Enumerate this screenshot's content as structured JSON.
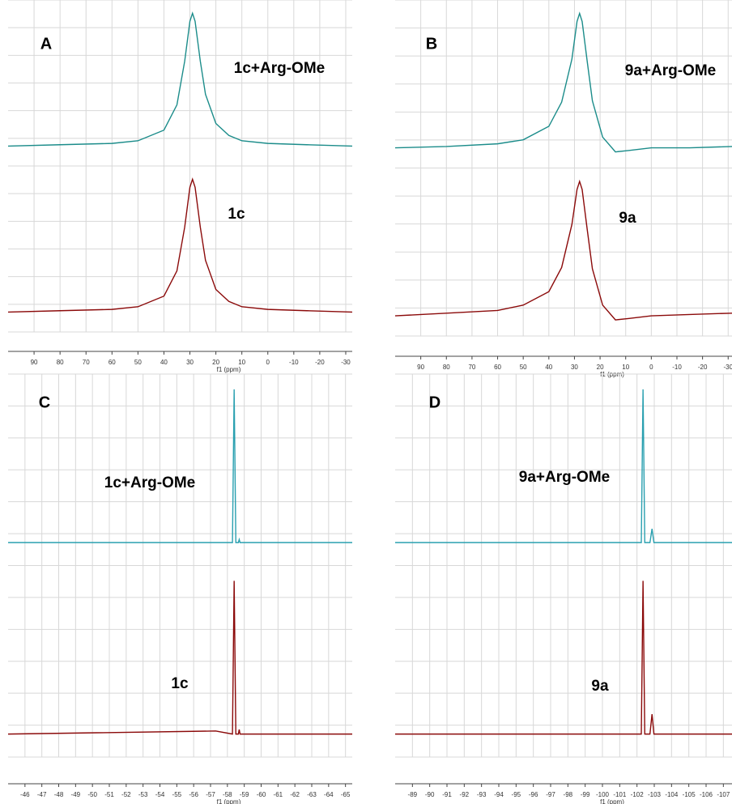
{
  "chart_data": [
    {
      "type": "line",
      "panel": "A",
      "xlabel": "f1 (ppm)",
      "xlim": [
        100,
        -32.5
      ],
      "ylim": [
        0,
        1
      ],
      "xticks": [
        90,
        80,
        70,
        60,
        50,
        40,
        30,
        20,
        10,
        0,
        -10,
        -20,
        -30
      ],
      "x": [
        100,
        80,
        60,
        50,
        40,
        35,
        32,
        30,
        29,
        28,
        26,
        24,
        20,
        15,
        10,
        0,
        -15,
        -32.5
      ],
      "series": [
        {
          "name": "1c+Arg-OMe",
          "color": "#1b8c8a",
          "values": [
            0,
            0.01,
            0.02,
            0.04,
            0.12,
            0.31,
            0.64,
            0.94,
            1,
            0.94,
            0.64,
            0.39,
            0.17,
            0.08,
            0.04,
            0.02,
            0.01,
            0
          ]
        },
        {
          "name": "1c",
          "color": "#8b0a0a",
          "values": [
            0,
            0.01,
            0.02,
            0.04,
            0.12,
            0.31,
            0.64,
            0.94,
            1,
            0.94,
            0.64,
            0.39,
            0.17,
            0.08,
            0.04,
            0.02,
            0.01,
            0
          ]
        }
      ]
    },
    {
      "type": "line",
      "panel": "B",
      "xlabel": "f1 (ppm)",
      "xlim": [
        100,
        -31.5
      ],
      "ylim": [
        0,
        1
      ],
      "xticks": [
        90,
        80,
        70,
        60,
        50,
        40,
        30,
        20,
        10,
        0,
        -10,
        -20,
        -30
      ],
      "x": [
        100,
        80,
        60,
        50,
        40,
        35,
        31,
        29,
        28,
        27,
        25,
        23,
        19,
        14,
        9,
        0,
        -15,
        -31.5
      ],
      "series": [
        {
          "name": "9a+Arg-OMe",
          "color": "#1b8c8a",
          "values": [
            0,
            0.01,
            0.03,
            0.06,
            0.16,
            0.34,
            0.66,
            0.94,
            1,
            0.94,
            0.64,
            0.35,
            0.08,
            -0.03,
            -0.02,
            0,
            0,
            0.01
          ]
        },
        {
          "name": "9a",
          "color": "#8b0a0a",
          "values": [
            0,
            0.02,
            0.04,
            0.08,
            0.18,
            0.36,
            0.68,
            0.94,
            1,
            0.94,
            0.64,
            0.35,
            0.08,
            -0.03,
            -0.02,
            0,
            0.01,
            0.02
          ]
        }
      ]
    },
    {
      "type": "line",
      "panel": "C",
      "xlabel": "f1 (ppm)",
      "xlim": [
        -45,
        -65.4
      ],
      "ylim": [
        0,
        1
      ],
      "xticks": [
        -46,
        -47,
        -48,
        -49,
        -50,
        -51,
        -52,
        -53,
        -54,
        -55,
        -56,
        -57,
        -58,
        -59,
        -60,
        -61,
        -62,
        -63,
        -64,
        -65
      ],
      "x": [
        -45,
        -57.3,
        -58.3,
        -58.4,
        -58.5,
        -58.65,
        -58.7,
        -58.75,
        -65.4
      ],
      "series": [
        {
          "name": "1c+Arg-OMe",
          "color": "#2aa0b0",
          "values": [
            0,
            0,
            0,
            1,
            0,
            0,
            0.02,
            0,
            0
          ]
        },
        {
          "name": "1c",
          "color": "#8b0a0a",
          "values": [
            0,
            0.02,
            0,
            1,
            0,
            0,
            0.03,
            0,
            0
          ]
        }
      ]
    },
    {
      "type": "line",
      "panel": "D",
      "xlabel": "f1 (ppm)",
      "xlim": [
        -88,
        -107.5
      ],
      "ylim": [
        0,
        1
      ],
      "xticks": [
        -89,
        -90,
        -91,
        -92,
        -93,
        -94,
        -95,
        -96,
        -97,
        -98,
        -99,
        -100,
        -101,
        -102,
        -103,
        -104,
        -105,
        -106,
        -107
      ],
      "x": [
        -88,
        -102.25,
        -102.35,
        -102.45,
        -102.75,
        -102.87,
        -102.98,
        -107.5
      ],
      "series": [
        {
          "name": "9a+Arg-OMe",
          "color": "#2aa0b0",
          "values": [
            0,
            0,
            1,
            0,
            0,
            0.09,
            0,
            0
          ]
        },
        {
          "name": "9a",
          "color": "#8b0a0a",
          "values": [
            0,
            0,
            1,
            0,
            0,
            0.13,
            0,
            0
          ]
        }
      ]
    }
  ]
}
